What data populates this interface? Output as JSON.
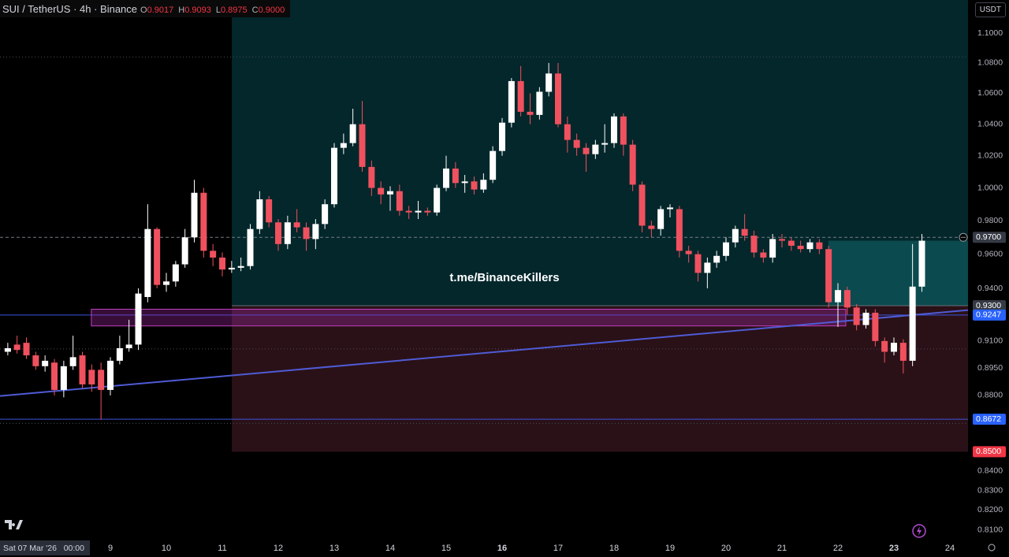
{
  "chart_data": {
    "type": "candlestick",
    "title": "SUI / TetherUS · 4h · Binance",
    "ohlc_legend": [
      {
        "key": "O",
        "value": "0.9017"
      },
      {
        "key": "H",
        "value": "0.9093"
      },
      {
        "key": "L",
        "value": "0.8975"
      },
      {
        "key": "C",
        "value": "0.9000"
      }
    ],
    "currency_button": "USDT",
    "watermark": "t.me/BinanceKillers",
    "cursor_time_label": "Sat 07 Mar '26   00:00",
    "up_color": "#ffffff",
    "down_color": "#f0515f",
    "log_scale": true,
    "xlim": [
      7.028,
      24.324
    ],
    "ylim": [
      0.8052,
      1.1227
    ],
    "xticks": [
      9,
      10,
      11,
      12,
      13,
      14,
      15,
      16,
      17,
      18,
      19,
      20,
      21,
      22,
      23,
      24
    ],
    "bold_xticks": [
      16,
      23
    ],
    "yticks": [
      {
        "value": 1.1,
        "label": "1.1000"
      },
      {
        "value": 1.08,
        "label": "1.0800"
      },
      {
        "value": 1.06,
        "label": "1.0600"
      },
      {
        "value": 1.04,
        "label": "1.0400"
      },
      {
        "value": 1.02,
        "label": "1.0200"
      },
      {
        "value": 1.0,
        "label": "1.0000"
      },
      {
        "value": 0.98,
        "label": "0.9800"
      },
      {
        "value": 0.96,
        "label": "0.9600"
      },
      {
        "value": 0.94,
        "label": "0.9400"
      },
      {
        "value": 0.91,
        "label": "0.9100"
      },
      {
        "value": 0.895,
        "label": "0.8950"
      },
      {
        "value": 0.88,
        "label": "0.8800"
      },
      {
        "value": 0.84,
        "label": "0.8400"
      },
      {
        "value": 0.83,
        "label": "0.8300"
      },
      {
        "value": 0.82,
        "label": "0.8200"
      },
      {
        "value": 0.81,
        "label": "0.8100"
      }
    ],
    "price_labels": [
      {
        "value": 0.97,
        "label": "0.9700",
        "color": "#363a45"
      },
      {
        "value": 0.93,
        "label": "0.9300",
        "color": "#363a45"
      },
      {
        "value": 0.9247,
        "label": "0.9247",
        "color": "#2962ff"
      },
      {
        "value": 0.8672,
        "label": "0.8672",
        "color": "#2962ff"
      },
      {
        "value": 0.85,
        "label": "0.8500",
        "color": "#f23645"
      }
    ],
    "hlines": [
      {
        "value": 0.9247,
        "color": "#3d55e0",
        "style": "solid"
      },
      {
        "value": 0.8672,
        "color": "#3d55e0",
        "style": "solid"
      },
      {
        "value": 0.97,
        "color": "#787b86",
        "style": "dashed"
      },
      {
        "value": 1.084,
        "color": "#4a4e58",
        "style": "dotted"
      },
      {
        "value": 0.9056,
        "color": "#4a4e58",
        "style": "dotted"
      },
      {
        "value": 0.865,
        "color": "#4a4e58",
        "style": "dotted"
      }
    ],
    "trendline": {
      "color": "#4f5bd5",
      "points": [
        [
          7.028,
          0.8797
        ],
        [
          24.324,
          0.9275
        ]
      ]
    },
    "zone_box": {
      "x": [
        8.66,
        22.14
      ],
      "y": [
        0.9185,
        0.928
      ],
      "color": "#c040c0"
    },
    "long_position": {
      "start": 11.17,
      "entry": 0.93,
      "stop": 0.85,
      "target": 1.13,
      "profit_start": 21.83,
      "profit_top": 0.968
    },
    "candles": [
      [
        7.167,
        0.904,
        0.909,
        0.902,
        0.906
      ],
      [
        7.333,
        0.908,
        0.913,
        0.903,
        0.905
      ],
      [
        7.5,
        0.909,
        0.912,
        0.9,
        0.902
      ],
      [
        7.667,
        0.902,
        0.904,
        0.894,
        0.896
      ],
      [
        7.833,
        0.896,
        0.902,
        0.893,
        0.899
      ],
      [
        8,
        0.898,
        0.9,
        0.88,
        0.883
      ],
      [
        8.167,
        0.883,
        0.899,
        0.879,
        0.896
      ],
      [
        8.333,
        0.896,
        0.913,
        0.894,
        0.901
      ],
      [
        8.5,
        0.902,
        0.904,
        0.884,
        0.886
      ],
      [
        8.667,
        0.894,
        0.897,
        0.882,
        0.886
      ],
      [
        8.833,
        0.894,
        0.898,
        0.867,
        0.883
      ],
      [
        9,
        0.883,
        0.901,
        0.88,
        0.899
      ],
      [
        9.167,
        0.899,
        0.913,
        0.897,
        0.906
      ],
      [
        9.333,
        0.906,
        0.922,
        0.904,
        0.908
      ],
      [
        9.5,
        0.908,
        0.94,
        0.905,
        0.937
      ],
      [
        9.667,
        0.935,
        0.99,
        0.932,
        0.975
      ],
      [
        9.833,
        0.975,
        0.976,
        0.94,
        0.942
      ],
      [
        10,
        0.942,
        0.949,
        0.938,
        0.944
      ],
      [
        10.167,
        0.944,
        0.956,
        0.941,
        0.954
      ],
      [
        10.333,
        0.954,
        0.975,
        0.952,
        0.97
      ],
      [
        10.5,
        0.97,
        1.005,
        0.967,
        0.997
      ],
      [
        10.667,
        0.997,
        1.0,
        0.958,
        0.962
      ],
      [
        10.833,
        0.962,
        0.966,
        0.953,
        0.958
      ],
      [
        11,
        0.958,
        0.961,
        0.947,
        0.951
      ],
      [
        11.167,
        0.951,
        0.956,
        0.949,
        0.952
      ],
      [
        11.333,
        0.952,
        0.958,
        0.95,
        0.953
      ],
      [
        11.5,
        0.953,
        0.978,
        0.951,
        0.975
      ],
      [
        11.667,
        0.975,
        0.998,
        0.972,
        0.993
      ],
      [
        11.833,
        0.993,
        0.995,
        0.976,
        0.979
      ],
      [
        12,
        0.979,
        0.981,
        0.962,
        0.966
      ],
      [
        12.167,
        0.966,
        0.983,
        0.963,
        0.979
      ],
      [
        12.333,
        0.979,
        0.987,
        0.973,
        0.976
      ],
      [
        12.5,
        0.976,
        0.979,
        0.962,
        0.969
      ],
      [
        12.667,
        0.969,
        0.981,
        0.963,
        0.978
      ],
      [
        12.833,
        0.978,
        0.993,
        0.975,
        0.99
      ],
      [
        13,
        0.99,
        1.028,
        0.988,
        1.025
      ],
      [
        13.167,
        1.025,
        1.034,
        1.021,
        1.028
      ],
      [
        13.333,
        1.028,
        1.05,
        1.026,
        1.04
      ],
      [
        13.5,
        1.04,
        1.055,
        1.01,
        1.013
      ],
      [
        13.667,
        1.013,
        1.017,
        0.995,
        1.0
      ],
      [
        13.833,
        1.0,
        1.004,
        0.99,
        0.996
      ],
      [
        14,
        0.996,
        1.001,
        0.986,
        0.998
      ],
      [
        14.167,
        0.998,
        1.002,
        0.983,
        0.986
      ],
      [
        14.333,
        0.986,
        0.989,
        0.981,
        0.985
      ],
      [
        14.5,
        0.985,
        0.992,
        0.981,
        0.986
      ],
      [
        14.667,
        0.986,
        0.988,
        0.983,
        0.985
      ],
      [
        14.833,
        0.985,
        1.002,
        0.983,
        1.0
      ],
      [
        15,
        1.0,
        1.02,
        0.998,
        1.012
      ],
      [
        15.167,
        1.012,
        1.016,
        1.0,
        1.003
      ],
      [
        15.333,
        1.003,
        1.008,
        0.997,
        1.004
      ],
      [
        15.5,
        1.004,
        1.007,
        0.996,
        0.999
      ],
      [
        15.667,
        0.999,
        1.009,
        0.997,
        1.005
      ],
      [
        15.833,
        1.005,
        1.026,
        1.003,
        1.023
      ],
      [
        16,
        1.023,
        1.044,
        1.02,
        1.041
      ],
      [
        16.167,
        1.041,
        1.07,
        1.038,
        1.068
      ],
      [
        16.333,
        1.068,
        1.078,
        1.045,
        1.048
      ],
      [
        16.5,
        1.048,
        1.06,
        1.04,
        1.046
      ],
      [
        16.667,
        1.046,
        1.064,
        1.043,
        1.061
      ],
      [
        16.833,
        1.061,
        1.08,
        1.058,
        1.073
      ],
      [
        17,
        1.073,
        1.08,
        1.038,
        1.04
      ],
      [
        17.167,
        1.04,
        1.045,
        1.022,
        1.03
      ],
      [
        17.333,
        1.03,
        1.034,
        1.02,
        1.025
      ],
      [
        17.5,
        1.025,
        1.028,
        1.01,
        1.021
      ],
      [
        17.667,
        1.021,
        1.03,
        1.018,
        1.027
      ],
      [
        17.833,
        1.027,
        1.04,
        1.022,
        1.028
      ],
      [
        18,
        1.028,
        1.047,
        1.025,
        1.045
      ],
      [
        18.167,
        1.045,
        1.047,
        1.02,
        1.027
      ],
      [
        18.333,
        1.027,
        1.03,
        0.998,
        1.002
      ],
      [
        18.5,
        1.002,
        1.004,
        0.973,
        0.977
      ],
      [
        18.667,
        0.977,
        0.98,
        0.97,
        0.975
      ],
      [
        18.833,
        0.975,
        0.989,
        0.971,
        0.987
      ],
      [
        19,
        0.987,
        0.99,
        0.982,
        0.988
      ],
      [
        19.167,
        0.987,
        0.989,
        0.958,
        0.962
      ],
      [
        19.333,
        0.962,
        0.965,
        0.955,
        0.96
      ],
      [
        19.5,
        0.96,
        0.962,
        0.944,
        0.949
      ],
      [
        19.667,
        0.949,
        0.958,
        0.94,
        0.955
      ],
      [
        19.833,
        0.955,
        0.962,
        0.952,
        0.959
      ],
      [
        20,
        0.959,
        0.97,
        0.956,
        0.967
      ],
      [
        20.167,
        0.967,
        0.977,
        0.964,
        0.975
      ],
      [
        20.333,
        0.975,
        0.984,
        0.968,
        0.971
      ],
      [
        20.5,
        0.971,
        0.974,
        0.958,
        0.961
      ],
      [
        20.667,
        0.961,
        0.963,
        0.955,
        0.958
      ],
      [
        20.833,
        0.958,
        0.972,
        0.955,
        0.969
      ],
      [
        21,
        0.969,
        0.972,
        0.964,
        0.968
      ],
      [
        21.167,
        0.968,
        0.97,
        0.962,
        0.965
      ],
      [
        21.333,
        0.965,
        0.968,
        0.961,
        0.963
      ],
      [
        21.5,
        0.963,
        0.969,
        0.961,
        0.967
      ],
      [
        21.667,
        0.967,
        0.969,
        0.96,
        0.963
      ],
      [
        21.833,
        0.963,
        0.965,
        0.929,
        0.932
      ],
      [
        22,
        0.932,
        0.943,
        0.918,
        0.939
      ],
      [
        22.167,
        0.939,
        0.941,
        0.925,
        0.929
      ],
      [
        22.333,
        0.929,
        0.931,
        0.916,
        0.919
      ],
      [
        22.5,
        0.919,
        0.928,
        0.917,
        0.926
      ],
      [
        22.667,
        0.926,
        0.928,
        0.907,
        0.91
      ],
      [
        22.833,
        0.91,
        0.912,
        0.898,
        0.904
      ],
      [
        23,
        0.904,
        0.912,
        0.902,
        0.909
      ],
      [
        23.167,
        0.909,
        0.911,
        0.892,
        0.899
      ],
      [
        23.333,
        0.899,
        0.966,
        0.896,
        0.941
      ],
      [
        23.5,
        0.941,
        0.972,
        0.938,
        0.968
      ]
    ]
  }
}
